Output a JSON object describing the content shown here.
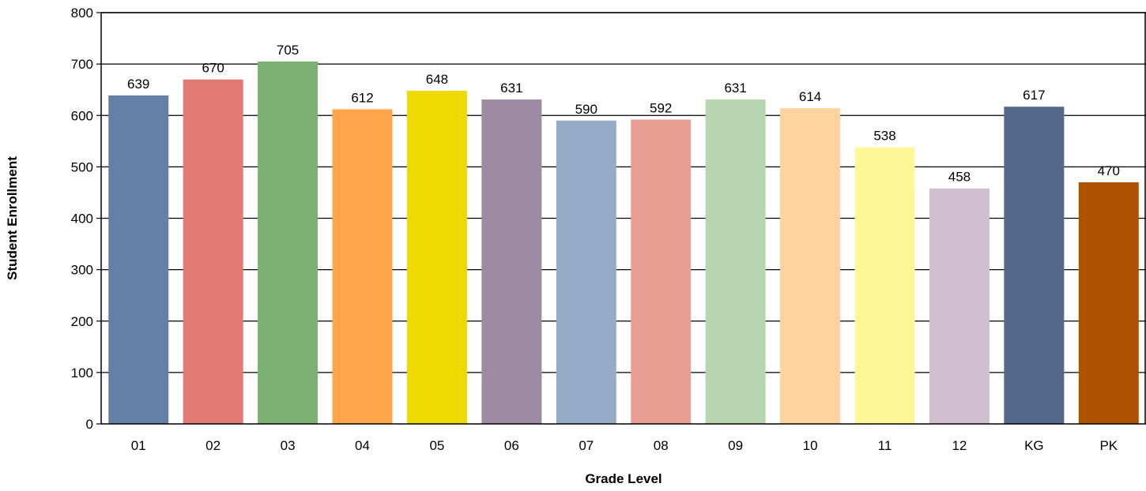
{
  "chart_data": {
    "type": "bar",
    "title": "",
    "xlabel": "Grade Level",
    "ylabel": "Student Enrollment",
    "categories": [
      "01",
      "02",
      "03",
      "04",
      "05",
      "06",
      "07",
      "08",
      "09",
      "10",
      "11",
      "12",
      "KG",
      "PK"
    ],
    "values": [
      639,
      670,
      705,
      612,
      648,
      631,
      590,
      592,
      631,
      614,
      538,
      458,
      617,
      470
    ],
    "colors": [
      "#6580a6",
      "#e07a73",
      "#7db174",
      "#ffa64d",
      "#f0d900",
      "#9d8aa3",
      "#96abc8",
      "#e79f94",
      "#b6d4ad",
      "#ffd29f",
      "#fff695",
      "#cfbfcf",
      "#53698c",
      "#ad5300"
    ],
    "ylim": [
      0,
      800
    ],
    "yticks": [
      0,
      100,
      200,
      300,
      400,
      500,
      600,
      700,
      800
    ],
    "grid": true,
    "legend": "none"
  }
}
